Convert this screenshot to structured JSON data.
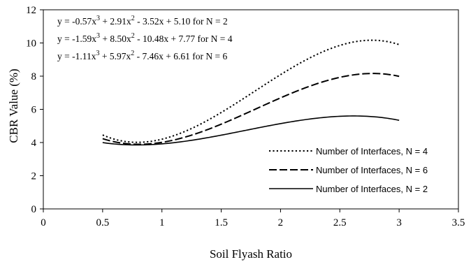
{
  "chart_data": {
    "type": "line",
    "title": "",
    "xlabel": "Soil Flyash Ratio",
    "ylabel": "CBR Value (%)",
    "xlim": [
      0,
      3.5
    ],
    "ylim": [
      0,
      12
    ],
    "x_ticks": [
      "0",
      "0.5",
      "1",
      "1.5",
      "2",
      "2.5",
      "3",
      "3.5"
    ],
    "y_ticks": [
      "0",
      "2",
      "4",
      "6",
      "8",
      "10",
      "12"
    ],
    "grid": false,
    "legend_position": "bottom-right",
    "equations": [
      {
        "base": "y = -0.57x",
        "sup1": "3",
        "mid1": " + 2.91x",
        "sup2": "2",
        "tail": " - 3.52x + 5.10 for N = 2"
      },
      {
        "base": "y = -1.59x",
        "sup1": "3",
        "mid1": " + 8.50x",
        "sup2": "2",
        "tail": " - 10.48x + 7.77 for N = 4"
      },
      {
        "base": "y = -1.11x",
        "sup1": "3",
        "mid1": " + 5.97x",
        "sup2": "2",
        "tail": " - 7.46x + 6.61 for N = 6"
      }
    ],
    "series": [
      {
        "name": "Number of Interfaces, N = 4",
        "style": "dotted",
        "coefficients": [
          -1.59,
          8.5,
          -10.48,
          7.77
        ],
        "x_range": [
          0.5,
          3.0
        ]
      },
      {
        "name": "Number of Interfaces, N = 6",
        "style": "dashed",
        "coefficients": [
          -1.11,
          5.97,
          -7.46,
          6.61
        ],
        "x_range": [
          0.5,
          3.0
        ]
      },
      {
        "name": "Number of Interfaces, N = 2",
        "style": "solid",
        "coefficients": [
          -0.57,
          2.91,
          -3.52,
          5.1
        ],
        "x_range": [
          0.5,
          3.0
        ]
      }
    ]
  }
}
